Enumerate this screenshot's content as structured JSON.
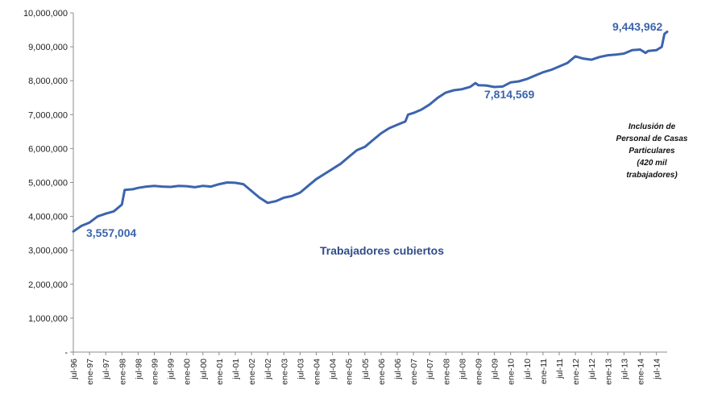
{
  "chart_data": {
    "type": "line",
    "title": "",
    "xlabel": "",
    "ylabel": "",
    "ylim": [
      0,
      10000000
    ],
    "yticks": [
      {
        "value": 0,
        "label": "-"
      },
      {
        "value": 1000000,
        "label": "1,000,000"
      },
      {
        "value": 2000000,
        "label": "2,000,000"
      },
      {
        "value": 3000000,
        "label": "3,000,000"
      },
      {
        "value": 4000000,
        "label": "4,000,000"
      },
      {
        "value": 5000000,
        "label": "5,000,000"
      },
      {
        "value": 6000000,
        "label": "6,000,000"
      },
      {
        "value": 7000000,
        "label": "7,000,000"
      },
      {
        "value": 8000000,
        "label": "8,000,000"
      },
      {
        "value": 9000000,
        "label": "9,000,000"
      },
      {
        "value": 10000000,
        "label": "10,000,000"
      }
    ],
    "x_start": "jul-96",
    "x_end": "nov-14",
    "xticks": [
      "jul-96",
      "ene-97",
      "jul-97",
      "ene-98",
      "jul-98",
      "ene-99",
      "jul-99",
      "ene-00",
      "jul-00",
      "ene-01",
      "jul-01",
      "ene-02",
      "jul-02",
      "ene-03",
      "jul-03",
      "ene-04",
      "jul-04",
      "ene-05",
      "jul-05",
      "ene-06",
      "jul-06",
      "ene-07",
      "jul-07",
      "ene-08",
      "jul-08",
      "ene-09",
      "jul-09",
      "ene-10",
      "jul-10",
      "ene-11",
      "jul-11",
      "ene-12",
      "jul-12",
      "ene-13",
      "jul-13",
      "ene-14",
      "jul-14"
    ],
    "grid": false,
    "series": [
      {
        "name": "Trabajadores cubiertos",
        "color": "#3B64AD",
        "points": [
          [
            "jul-96",
            3557004
          ],
          [
            "oct-96",
            3720000
          ],
          [
            "ene-97",
            3820000
          ],
          [
            "abr-97",
            4000000
          ],
          [
            "jul-97",
            4080000
          ],
          [
            "oct-97",
            4150000
          ],
          [
            "ene-98",
            4350000
          ],
          [
            "feb-98",
            4780000
          ],
          [
            "may-98",
            4800000
          ],
          [
            "jul-98",
            4840000
          ],
          [
            "oct-98",
            4880000
          ],
          [
            "ene-99",
            4900000
          ],
          [
            "abr-99",
            4880000
          ],
          [
            "jul-99",
            4870000
          ],
          [
            "oct-99",
            4900000
          ],
          [
            "ene-00",
            4890000
          ],
          [
            "abr-00",
            4860000
          ],
          [
            "jul-00",
            4900000
          ],
          [
            "oct-00",
            4880000
          ],
          [
            "ene-01",
            4950000
          ],
          [
            "abr-01",
            5000000
          ],
          [
            "jul-01",
            4990000
          ],
          [
            "oct-01",
            4950000
          ],
          [
            "ene-02",
            4750000
          ],
          [
            "abr-02",
            4550000
          ],
          [
            "jul-02",
            4400000
          ],
          [
            "oct-02",
            4450000
          ],
          [
            "ene-03",
            4550000
          ],
          [
            "abr-03",
            4600000
          ],
          [
            "jul-03",
            4700000
          ],
          [
            "oct-03",
            4900000
          ],
          [
            "ene-04",
            5100000
          ],
          [
            "abr-04",
            5250000
          ],
          [
            "jul-04",
            5400000
          ],
          [
            "oct-04",
            5550000
          ],
          [
            "ene-05",
            5750000
          ],
          [
            "abr-05",
            5950000
          ],
          [
            "jul-05",
            6050000
          ],
          [
            "oct-05",
            6250000
          ],
          [
            "ene-06",
            6450000
          ],
          [
            "abr-06",
            6600000
          ],
          [
            "jul-06",
            6700000
          ],
          [
            "oct-06",
            6800000
          ],
          [
            "nov-06",
            7000000
          ],
          [
            "ene-07",
            7050000
          ],
          [
            "abr-07",
            7150000
          ],
          [
            "jul-07",
            7300000
          ],
          [
            "oct-07",
            7500000
          ],
          [
            "ene-08",
            7650000
          ],
          [
            "abr-08",
            7720000
          ],
          [
            "jul-08",
            7750000
          ],
          [
            "oct-08",
            7820000
          ],
          [
            "dic-08",
            7930000
          ],
          [
            "ene-09",
            7870000
          ],
          [
            "abr-09",
            7860000
          ],
          [
            "jul-09",
            7814569
          ],
          [
            "oct-09",
            7830000
          ],
          [
            "ene-10",
            7950000
          ],
          [
            "abr-10",
            7980000
          ],
          [
            "jul-10",
            8050000
          ],
          [
            "oct-10",
            8150000
          ],
          [
            "ene-11",
            8250000
          ],
          [
            "abr-11",
            8320000
          ],
          [
            "jul-11",
            8420000
          ],
          [
            "oct-11",
            8520000
          ],
          [
            "ene-12",
            8720000
          ],
          [
            "abr-12",
            8650000
          ],
          [
            "jul-12",
            8620000
          ],
          [
            "oct-12",
            8700000
          ],
          [
            "ene-13",
            8750000
          ],
          [
            "abr-13",
            8770000
          ],
          [
            "jul-13",
            8800000
          ],
          [
            "oct-13",
            8900000
          ],
          [
            "ene-14",
            8920000
          ],
          [
            "mar-14",
            8820000
          ],
          [
            "abr-14",
            8880000
          ],
          [
            "jul-14",
            8900000
          ],
          [
            "sep-14",
            9000000
          ],
          [
            "oct-14",
            9380000
          ],
          [
            "nov-14",
            9443962
          ]
        ]
      }
    ],
    "data_labels": [
      {
        "x": "jul-96",
        "value": 3557004,
        "text": "3,557,004"
      },
      {
        "x": "jul-09",
        "value": 7814569,
        "text": "7,814,569"
      },
      {
        "x": "nov-14",
        "value": 9443962,
        "text": "9,443,962"
      }
    ],
    "series_label": "Trabajadores cubiertos",
    "annotation": [
      "Inclusión de",
      "Personal de Casas",
      "Particulares",
      "(420 mil",
      "trabajadores)"
    ]
  }
}
